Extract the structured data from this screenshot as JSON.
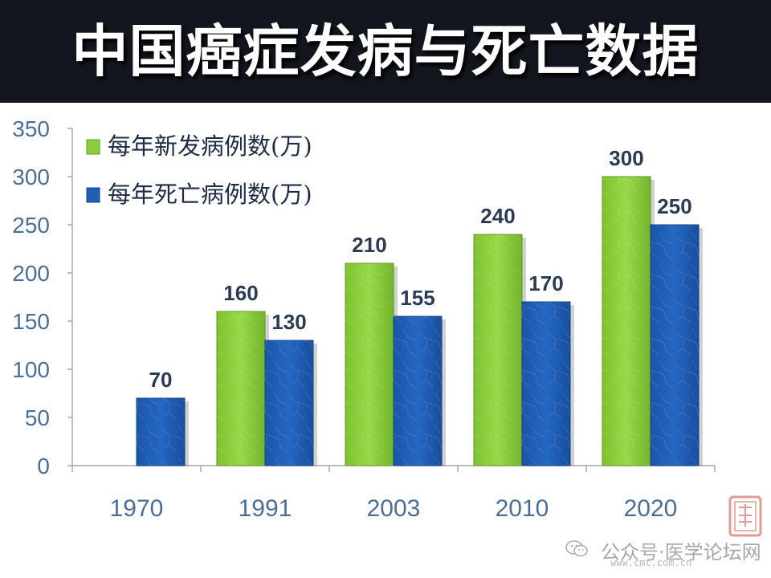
{
  "title": "中国癌症发病与死亡数据",
  "watermark": {
    "text": "公众号·医学论坛网",
    "site": "www.cmt.com.cn"
  },
  "colors": {
    "incidence": "#8ccd3c",
    "deaths": "#1f5fb5",
    "title_bg": "#14161f",
    "axis_text": "#4a6e96"
  },
  "chart_data": {
    "type": "bar",
    "categories": [
      "1970",
      "1991",
      "2003",
      "2010",
      "2020"
    ],
    "ylim": [
      0,
      350
    ],
    "yticks": [
      "0",
      "50",
      "100",
      "150",
      "200",
      "250",
      "300",
      "350"
    ],
    "grid": false,
    "legend_position": "top-left",
    "series": [
      {
        "name": "每年新发病例数(万)",
        "color": "#8ccd3c",
        "values": [
          null,
          160,
          210,
          240,
          300
        ],
        "labels": [
          "",
          "160",
          "210",
          "240",
          "300"
        ]
      },
      {
        "name": "每年死亡病例数(万)",
        "color": "#1f5fb5",
        "values": [
          70,
          130,
          155,
          170,
          250
        ],
        "labels": [
          "70",
          "130",
          "155",
          "170",
          "250"
        ]
      }
    ]
  }
}
